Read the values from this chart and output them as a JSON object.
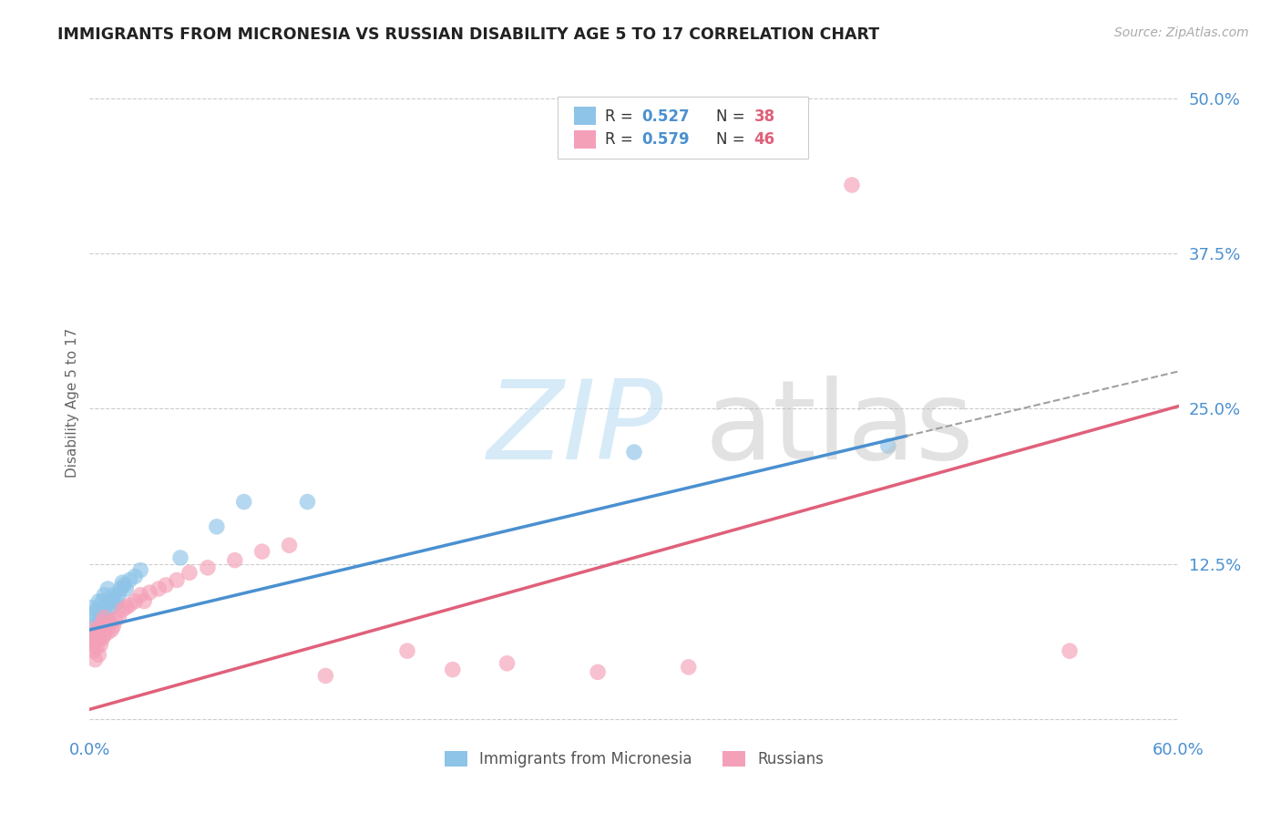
{
  "title": "IMMIGRANTS FROM MICRONESIA VS RUSSIAN DISABILITY AGE 5 TO 17 CORRELATION CHART",
  "source": "Source: ZipAtlas.com",
  "ylabel": "Disability Age 5 to 17",
  "xlim": [
    0.0,
    0.6
  ],
  "ylim": [
    -0.01,
    0.52
  ],
  "xticks": [
    0.0,
    0.1,
    0.2,
    0.3,
    0.4,
    0.5,
    0.6
  ],
  "xticklabels": [
    "0.0%",
    "",
    "",
    "",
    "",
    "",
    "60.0%"
  ],
  "ytick_positions": [
    0.0,
    0.125,
    0.25,
    0.375,
    0.5
  ],
  "ytick_labels": [
    "",
    "12.5%",
    "25.0%",
    "37.5%",
    "50.0%"
  ],
  "grid_color": "#cccccc",
  "background_color": "#ffffff",
  "color_blue": "#8ec4e8",
  "color_pink": "#f4a0b8",
  "color_blue_line": "#4a90d0",
  "color_pink_line": "#e0607a",
  "color_text_blue": "#4a90d0",
  "color_text_red": "#e0607a",
  "series1_label": "Immigrants from Micronesia",
  "series2_label": "Russians",
  "blue_line_x0": 0.0,
  "blue_line_y0": 0.072,
  "blue_line_x1": 0.45,
  "blue_line_y1": 0.228,
  "pink_line_x0": 0.0,
  "pink_line_y0": 0.008,
  "pink_line_x1": 0.6,
  "pink_line_y1": 0.252,
  "micro_x": [
    0.001,
    0.001,
    0.002,
    0.002,
    0.003,
    0.003,
    0.004,
    0.004,
    0.005,
    0.005,
    0.006,
    0.006,
    0.007,
    0.007,
    0.008,
    0.008,
    0.009,
    0.01,
    0.01,
    0.011,
    0.012,
    0.013,
    0.014,
    0.015,
    0.016,
    0.017,
    0.018,
    0.019,
    0.02,
    0.022,
    0.025,
    0.028,
    0.05,
    0.07,
    0.085,
    0.12,
    0.3,
    0.44
  ],
  "micro_y": [
    0.075,
    0.09,
    0.068,
    0.085,
    0.065,
    0.08,
    0.072,
    0.088,
    0.07,
    0.095,
    0.082,
    0.075,
    0.078,
    0.095,
    0.085,
    0.1,
    0.092,
    0.08,
    0.105,
    0.088,
    0.095,
    0.1,
    0.092,
    0.095,
    0.1,
    0.105,
    0.11,
    0.108,
    0.105,
    0.112,
    0.115,
    0.12,
    0.13,
    0.155,
    0.175,
    0.175,
    0.215,
    0.22
  ],
  "rus_x": [
    0.001,
    0.001,
    0.002,
    0.002,
    0.003,
    0.003,
    0.004,
    0.004,
    0.005,
    0.005,
    0.006,
    0.006,
    0.007,
    0.007,
    0.008,
    0.008,
    0.009,
    0.01,
    0.011,
    0.012,
    0.013,
    0.014,
    0.016,
    0.018,
    0.02,
    0.022,
    0.025,
    0.028,
    0.03,
    0.033,
    0.038,
    0.042,
    0.048,
    0.055,
    0.065,
    0.08,
    0.095,
    0.11,
    0.13,
    0.175,
    0.2,
    0.23,
    0.28,
    0.33,
    0.42,
    0.54
  ],
  "rus_y": [
    0.06,
    0.072,
    0.055,
    0.068,
    0.048,
    0.062,
    0.058,
    0.07,
    0.052,
    0.065,
    0.06,
    0.075,
    0.065,
    0.078,
    0.068,
    0.082,
    0.075,
    0.07,
    0.078,
    0.072,
    0.075,
    0.08,
    0.082,
    0.088,
    0.09,
    0.092,
    0.095,
    0.1,
    0.095,
    0.102,
    0.105,
    0.108,
    0.112,
    0.118,
    0.122,
    0.128,
    0.135,
    0.14,
    0.035,
    0.055,
    0.04,
    0.045,
    0.038,
    0.042,
    0.43,
    0.055
  ]
}
